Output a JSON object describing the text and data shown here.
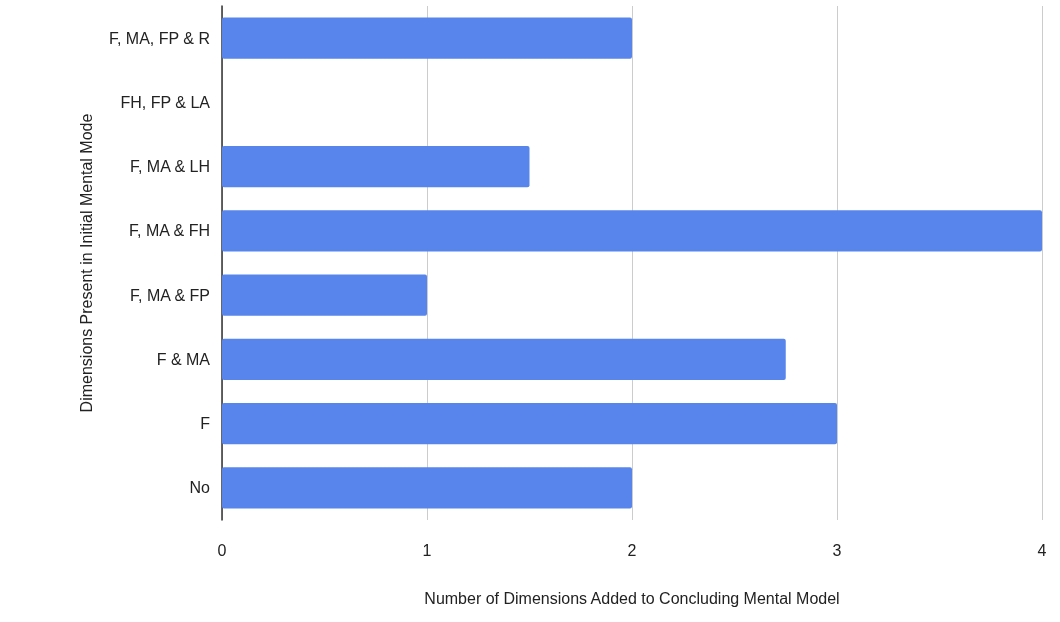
{
  "chart_data": {
    "type": "bar",
    "orientation": "horizontal",
    "xlabel": "Number of Dimensions Added to Concluding Mental Model",
    "ylabel": "Dimensions Present in Initial Mental Mode",
    "categories": [
      "F, MA, FP & R",
      "FH, FP & LA",
      "F, MA & LH",
      "F, MA & FH",
      "F, MA & FP",
      "F & MA",
      "F",
      "No"
    ],
    "values": [
      2,
      0,
      1.5,
      4,
      1,
      2.75,
      3,
      2
    ],
    "color": "#5885ec",
    "xlim": [
      0,
      4
    ],
    "xticks": [
      0,
      1,
      2,
      3,
      4
    ],
    "grid": "x"
  }
}
